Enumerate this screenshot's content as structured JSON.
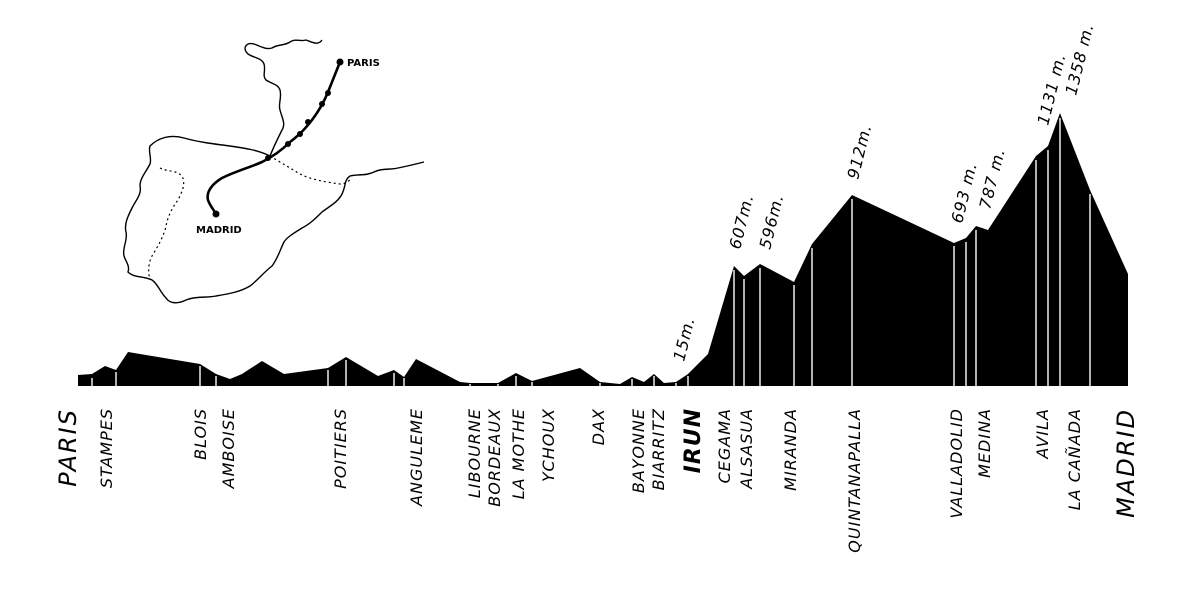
{
  "map": {
    "cities": [
      {
        "name": "PARIS"
      },
      {
        "name": "MADRID"
      }
    ]
  },
  "profile": {
    "color": "#000000",
    "elevation_labels": [
      "15m.",
      "607m.",
      "596m.",
      "912m.",
      "693 m.",
      "787 m.",
      "1131 m.",
      "1358 m."
    ],
    "stations": [
      {
        "name": "PARIS",
        "style": "big"
      },
      {
        "name": "STAMPES",
        "style": "normal"
      },
      {
        "name": "BLOIS",
        "style": "normal"
      },
      {
        "name": "AMBOISE",
        "style": "normal"
      },
      {
        "name": "POITIERS",
        "style": "normal"
      },
      {
        "name": "ANGULEME",
        "style": "normal"
      },
      {
        "name": "LIBOURNE",
        "style": "normal"
      },
      {
        "name": "BORDEAUX",
        "style": "normal"
      },
      {
        "name": "LA MOTHE",
        "style": "normal"
      },
      {
        "name": "YCHOUX",
        "style": "normal"
      },
      {
        "name": "DAX",
        "style": "normal"
      },
      {
        "name": "BAYONNE",
        "style": "normal"
      },
      {
        "name": "BIARRITZ",
        "style": "normal"
      },
      {
        "name": "IRUN",
        "style": "bold"
      },
      {
        "name": "CEGAMA",
        "style": "normal"
      },
      {
        "name": "ALSASUA",
        "style": "normal"
      },
      {
        "name": "MIRANDA",
        "style": "normal"
      },
      {
        "name": "QUINTANAPALLA",
        "style": "normal"
      },
      {
        "name": "VALLADOLID",
        "style": "normal"
      },
      {
        "name": "MEDINA",
        "style": "normal"
      },
      {
        "name": "AVILA",
        "style": "normal"
      },
      {
        "name": "LA CAÑADA",
        "style": "normal"
      },
      {
        "name": "MADRID",
        "style": "big"
      }
    ]
  }
}
